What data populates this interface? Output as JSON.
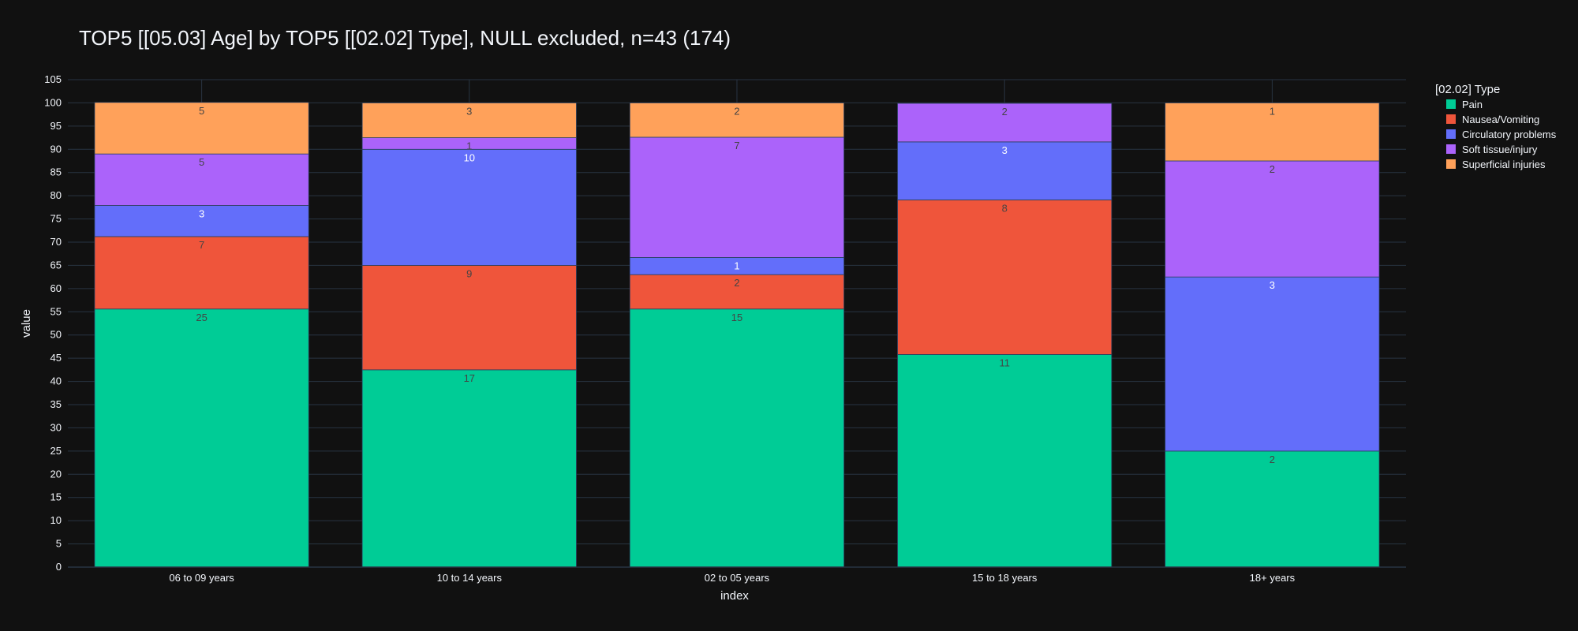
{
  "chart_data": {
    "type": "bar",
    "stacked": true,
    "normalized_percent": true,
    "title": "TOP5 [[05.03] Age] by TOP5 [[02.02] Type], NULL excluded, n=43 (174)",
    "xlabel": "index",
    "ylabel": "value",
    "ylim": [
      0,
      105
    ],
    "yticks": [
      0,
      5,
      10,
      15,
      20,
      25,
      30,
      35,
      40,
      45,
      50,
      55,
      60,
      65,
      70,
      75,
      80,
      85,
      90,
      95,
      100,
      105
    ],
    "grid": true,
    "legend_title": "[02.02] Type",
    "legend_position": "right",
    "categories": [
      "06 to 09 years",
      "10 to 14 years",
      "02 to 05 years",
      "15 to 18 years",
      "18+ years"
    ],
    "series": [
      {
        "name": "Pain",
        "color": "#00cc96",
        "label_color": "#444444",
        "values": [
          55.6,
          42.5,
          55.6,
          45.8,
          25.0
        ],
        "labels": [
          "25",
          "17",
          "15",
          "11",
          "2"
        ]
      },
      {
        "name": "Nausea/Vomiting",
        "color": "#ef553b",
        "label_color": "#444444",
        "values": [
          15.6,
          22.5,
          7.4,
          33.3,
          0
        ],
        "labels": [
          "7",
          "9",
          "2",
          "8",
          ""
        ]
      },
      {
        "name": "Circulatory problems",
        "color": "#636efa",
        "label_color": "#ffffff",
        "values": [
          6.7,
          25.0,
          3.7,
          12.5,
          37.5
        ],
        "labels": [
          "3",
          "10",
          "1",
          "3",
          "3"
        ]
      },
      {
        "name": "Soft tissue/injury",
        "color": "#ab63fa",
        "label_color": "#444444",
        "values": [
          11.1,
          2.5,
          25.9,
          8.3,
          25.0
        ],
        "labels": [
          "5",
          "1",
          "7",
          "2",
          "2"
        ]
      },
      {
        "name": "Superficial injuries",
        "color": "#ffa15a",
        "label_color": "#444444",
        "values": [
          11.1,
          7.5,
          7.4,
          0,
          12.5
        ],
        "labels": [
          "5",
          "3",
          "2",
          "",
          "1"
        ]
      }
    ]
  },
  "colors": {
    "background": "#111111",
    "grid": "#283442",
    "text": "#f2f5fa"
  }
}
